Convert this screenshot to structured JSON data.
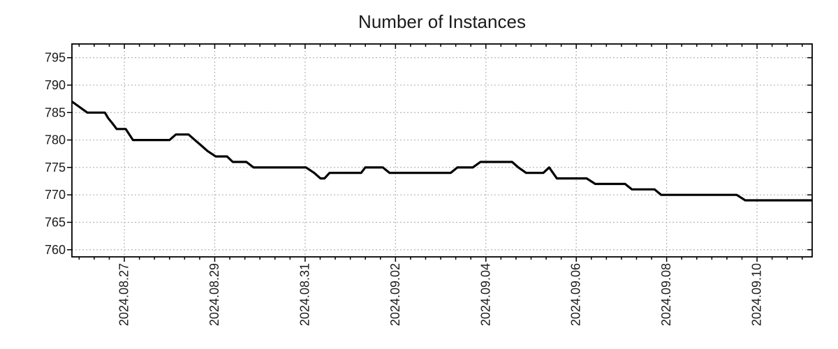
{
  "page": {
    "background": "#ffffff"
  },
  "chart_data": {
    "type": "line",
    "title": "Number of Instances",
    "xlabel": "",
    "ylabel": "",
    "grid": true,
    "legend": false,
    "line_color": "#000000",
    "grid_color": "#b5b5b5",
    "axis_color": "#000000",
    "x_axis": {
      "unit": "days relative to 2024-08-27 00:00",
      "range": [
        -1.16,
        15.22
      ],
      "minor_tick_step_days": 0.3333,
      "major_ticks": [
        {
          "t": 0,
          "label": "2024.08.27"
        },
        {
          "t": 2,
          "label": "2024.08.29"
        },
        {
          "t": 4,
          "label": "2024.08.31"
        },
        {
          "t": 6,
          "label": "2024.09.02"
        },
        {
          "t": 8,
          "label": "2024.09.04"
        },
        {
          "t": 10,
          "label": "2024.09.06"
        },
        {
          "t": 12,
          "label": "2024.09.08"
        },
        {
          "t": 14,
          "label": "2024.09.10"
        }
      ]
    },
    "y_axis": {
      "range": [
        758.7,
        797.5
      ],
      "ticks": [
        760,
        765,
        770,
        775,
        780,
        785,
        790,
        795
      ]
    },
    "series": [
      {
        "name": "instances",
        "points": [
          [
            -1.16,
            787
          ],
          [
            -0.82,
            785
          ],
          [
            -0.43,
            785
          ],
          [
            -0.36,
            784
          ],
          [
            -0.26,
            783
          ],
          [
            -0.17,
            782
          ],
          [
            0.03,
            782
          ],
          [
            0.19,
            780
          ],
          [
            1.0,
            780
          ],
          [
            1.14,
            781
          ],
          [
            1.42,
            781
          ],
          [
            1.56,
            780
          ],
          [
            1.7,
            779
          ],
          [
            1.84,
            778
          ],
          [
            2.02,
            777
          ],
          [
            2.27,
            777
          ],
          [
            2.4,
            776
          ],
          [
            2.7,
            776
          ],
          [
            2.86,
            775
          ],
          [
            4.02,
            775
          ],
          [
            4.2,
            774
          ],
          [
            4.34,
            773
          ],
          [
            4.43,
            773
          ],
          [
            4.54,
            774
          ],
          [
            5.24,
            774
          ],
          [
            5.33,
            775
          ],
          [
            5.72,
            775
          ],
          [
            5.87,
            774
          ],
          [
            7.22,
            774
          ],
          [
            7.37,
            775
          ],
          [
            7.71,
            775
          ],
          [
            7.88,
            776
          ],
          [
            8.58,
            776
          ],
          [
            8.72,
            775
          ],
          [
            8.89,
            774
          ],
          [
            9.27,
            774
          ],
          [
            9.4,
            775
          ],
          [
            9.57,
            773
          ],
          [
            10.23,
            773
          ],
          [
            10.42,
            772
          ],
          [
            11.08,
            772
          ],
          [
            11.23,
            771
          ],
          [
            11.73,
            771
          ],
          [
            11.88,
            770
          ],
          [
            13.55,
            770
          ],
          [
            13.74,
            769
          ],
          [
            15.22,
            769
          ]
        ]
      }
    ]
  }
}
